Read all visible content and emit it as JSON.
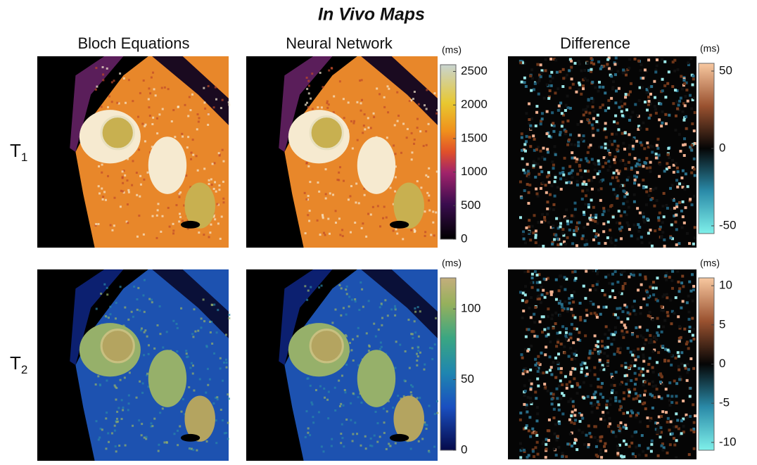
{
  "header": {
    "title": "In Vivo Maps"
  },
  "columns": [
    "Bloch Equations",
    "Neural Network",
    "Difference"
  ],
  "rows": [
    {
      "base": "T",
      "sub": "1"
    },
    {
      "base": "T",
      "sub": "2"
    }
  ],
  "colorbars": [
    {
      "unit": "(ms)",
      "lim": [
        0,
        2600
      ],
      "ticks": [
        0,
        500,
        1000,
        1500,
        2000,
        2500
      ]
    },
    {
      "unit": "(ms)",
      "lim": [
        -55,
        55
      ],
      "ticks": [
        -50,
        0,
        50
      ]
    },
    {
      "unit": "(ms)",
      "lim": [
        0,
        122
      ],
      "ticks": [
        0,
        50,
        100
      ]
    },
    {
      "unit": "(ms)",
      "lim": [
        -11,
        11
      ],
      "ticks": [
        -10,
        -5,
        0,
        5,
        10
      ]
    }
  ]
}
